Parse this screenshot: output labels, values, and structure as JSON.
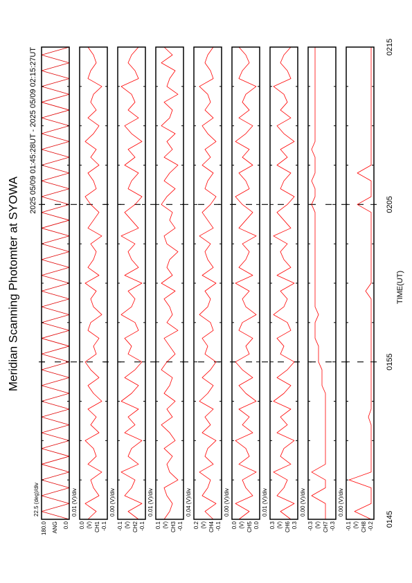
{
  "chart_data": {
    "type": "line",
    "title": "Meridian Scanning Photomter at SYOWA",
    "subtitle": "2025 05/09 01:45:28UT - 2025 05/09 02:15:27UT",
    "xlabel": "TIME(UT)",
    "xlim": [
      105,
      135
    ],
    "xticks": [
      {
        "value": 105,
        "label": "0145"
      },
      {
        "value": 115,
        "label": "0155"
      },
      {
        "value": 125,
        "label": "0205"
      },
      {
        "value": 135,
        "label": "0215"
      }
    ],
    "minor_xticks": [
      107.5,
      110,
      112.5,
      117.5,
      120,
      122.5,
      127.5,
      130,
      132.5
    ],
    "x": [
      105,
      105.5,
      106,
      106.5,
      107,
      107.5,
      108,
      108.5,
      109,
      109.5,
      110,
      110.5,
      111,
      111.5,
      112,
      112.5,
      113,
      113.5,
      114,
      114.5,
      115,
      115.5,
      116,
      116.5,
      117,
      117.5,
      118,
      118.5,
      119,
      119.5,
      120,
      120.5,
      121,
      121.5,
      122,
      122.5,
      123,
      123.5,
      124,
      124.5,
      125,
      125.5,
      126,
      126.5,
      127,
      127.5,
      128,
      128.5,
      129,
      129.5,
      130,
      130.5,
      131,
      131.5,
      132,
      132.5,
      133,
      133.5,
      134,
      134.5,
      135
    ],
    "panels": [
      {
        "scale": "22.5 (deg)/div",
        "labels": [
          "ANG"
        ],
        "ylim": [
          0,
          180
        ],
        "yticks": [
          {
            "value": 0,
            "label": "0.0"
          },
          {
            "value": 180,
            "label": "180.0"
          }
        ],
        "color": "#e00000",
        "values": [
          0,
          180,
          0,
          180,
          0,
          180,
          0,
          180,
          0,
          180,
          0,
          180,
          0,
          180,
          0,
          180,
          0,
          180,
          0,
          180,
          0,
          180,
          0,
          180,
          0,
          180,
          0,
          180,
          0,
          180,
          0,
          180,
          0,
          180,
          0,
          180,
          0,
          180,
          0,
          180,
          0,
          180,
          0,
          180,
          0,
          180,
          0,
          180,
          0,
          180,
          0,
          180,
          0,
          180,
          0,
          180,
          0,
          180,
          0,
          180,
          0
        ]
      },
      {
        "scale": "0.01 (V)/div",
        "labels": [
          "(V)",
          "CH1"
        ],
        "ylim": [
          -0.1,
          0.0
        ],
        "yticks": [
          -0.1,
          {
            "value": 0,
            "label": "0.0"
          }
        ],
        "color": "#ff0000",
        "values": [
          -0.03,
          -0.06,
          -0.02,
          -0.07,
          -0.05,
          -0.04,
          -0.08,
          -0.03,
          -0.06,
          -0.05,
          -0.02,
          -0.07,
          -0.04,
          -0.06,
          -0.03,
          -0.08,
          -0.05,
          -0.03,
          -0.07,
          -0.04,
          -0.02,
          -0.06,
          -0.05,
          -0.07,
          -0.03,
          -0.04,
          -0.08,
          -0.05,
          -0.04,
          -0.06,
          -0.02,
          -0.07,
          -0.03,
          -0.05,
          -0.06,
          -0.04,
          -0.08,
          -0.03,
          -0.05,
          -0.07,
          -0.04,
          -0.02,
          -0.06,
          -0.05,
          -0.03,
          -0.07,
          -0.04,
          -0.06,
          -0.02,
          -0.05,
          -0.07,
          -0.03,
          -0.06,
          -0.04,
          -0.05,
          -0.08,
          -0.03,
          -0.04,
          -0.06,
          -0.05,
          -0.03
        ]
      },
      {
        "scale": "0.00 (V)/div",
        "labels": [
          "(V)",
          "CH2"
        ],
        "ylim": [
          -0.14,
          -0.06
        ],
        "yticks": [
          {
            "value": -0.14,
            "label": "-0.1"
          },
          {
            "value": -0.06,
            "label": "-0.1"
          }
        ],
        "color": "#ff0000",
        "values": [
          -0.12,
          -0.09,
          -0.13,
          -0.08,
          -0.1,
          -0.11,
          -0.07,
          -0.12,
          -0.09,
          -0.1,
          -0.13,
          -0.08,
          -0.11,
          -0.09,
          -0.12,
          -0.07,
          -0.1,
          -0.12,
          -0.08,
          -0.11,
          -0.13,
          -0.09,
          -0.1,
          -0.08,
          -0.12,
          -0.11,
          -0.07,
          -0.1,
          -0.11,
          -0.09,
          -0.13,
          -0.08,
          -0.12,
          -0.1,
          -0.09,
          -0.11,
          -0.07,
          -0.12,
          -0.1,
          -0.08,
          -0.11,
          -0.13,
          -0.09,
          -0.1,
          -0.12,
          -0.08,
          -0.11,
          -0.09,
          -0.13,
          -0.1,
          -0.08,
          -0.12,
          -0.09,
          -0.11,
          -0.1,
          -0.07,
          -0.12,
          -0.11,
          -0.09,
          -0.1,
          -0.12
        ]
      },
      {
        "scale": "0.01 (V)/div",
        "labels": [
          "(V)",
          "CH3"
        ],
        "ylim": [
          -0.1,
          0.1
        ],
        "yticks": [
          -0.1,
          0.1
        ],
        "color": "#ff0000",
        "values": [
          0.04,
          0,
          -0.02,
          0.02,
          0.04,
          -0.06,
          0,
          0.02,
          -0.02,
          0.04,
          -0.04,
          0,
          0.06,
          -0.02,
          0.02,
          -0.04,
          0.04,
          0,
          -0.02,
          0.06,
          0.02,
          -0.04,
          0,
          0.04,
          -0.06,
          0.02,
          -0.02,
          0,
          0.04,
          -0.04,
          0.06,
          -0.02,
          0.02,
          0,
          -0.06,
          0.02,
          0.04,
          -0.04,
          0,
          -0.02,
          0.06,
          0.02,
          -0.04,
          0.04,
          0,
          -0.06,
          0.04,
          -0.02,
          0.02,
          -0.04,
          0.06,
          0,
          -0.02,
          0.04,
          -0.06,
          0.02,
          0,
          -0.04,
          0.06,
          -0.02,
          0.04
        ]
      },
      {
        "scale": "0.04 (V)/div",
        "labels": [
          "(V)",
          "CH4"
        ],
        "ylim": [
          -0.1,
          0.2
        ],
        "yticks": [
          -0.1,
          0.2
        ],
        "color": "#ff0000",
        "values": [
          -0.01,
          0.08,
          -0.04,
          0.11,
          0.05,
          0.02,
          0.14,
          -0.01,
          0.08,
          0.05,
          -0.04,
          0.11,
          0.02,
          0.08,
          -0.01,
          0.14,
          0.05,
          -0.01,
          0.11,
          0.02,
          -0.04,
          0.08,
          0.05,
          0.11,
          -0.01,
          0.02,
          0.14,
          0.05,
          0.02,
          0.08,
          -0.04,
          0.11,
          -0.01,
          0.05,
          0.08,
          0.02,
          0.14,
          -0.01,
          0.05,
          0.11,
          0.02,
          -0.04,
          0.08,
          0.05,
          -0.01,
          0.11,
          0.02,
          0.08,
          -0.04,
          0.05,
          0.11,
          -0.01,
          0.08,
          0.02,
          0.05,
          0.14,
          -0.01,
          0.02,
          0.08,
          0.05,
          -0.01
        ]
      },
      {
        "scale": "0.00 (V)/div",
        "labels": [
          "(V)",
          "CH5"
        ],
        "ylim": [
          -0.04,
          0.04
        ],
        "yticks": [
          {
            "value": -0.04,
            "label": "0.0"
          },
          {
            "value": 0.04,
            "label": "0.0"
          }
        ],
        "color": "#ff0000",
        "values": [
          0.02,
          -0.01,
          0.03,
          -0.02,
          0,
          0.01,
          -0.03,
          0.02,
          -0.01,
          0,
          0.03,
          -0.02,
          0.01,
          -0.01,
          0.02,
          -0.03,
          0,
          0.02,
          -0.02,
          0.01,
          0.03,
          -0.01,
          0,
          -0.02,
          0.02,
          0.01,
          -0.03,
          0,
          0.01,
          -0.01,
          0.03,
          -0.02,
          0.02,
          0,
          -0.01,
          0.01,
          -0.03,
          0.02,
          0,
          -0.02,
          0.01,
          0.03,
          -0.01,
          0,
          0.02,
          -0.02,
          0.01,
          -0.01,
          0.03,
          0,
          -0.02,
          0.02,
          -0.01,
          0.01,
          0,
          -0.03,
          0.02,
          0.01,
          -0.01,
          0,
          0.02
        ]
      },
      {
        "scale": "0.01 (V)/div",
        "labels": [
          "(V)",
          "CH6"
        ],
        "ylim": [
          0.26,
          0.34
        ],
        "yticks": [
          {
            "value": 0.26,
            "label": "0.3"
          },
          {
            "value": 0.34,
            "label": "0.3"
          }
        ],
        "color": "#ff0000",
        "values": [
          0.28,
          0.31,
          0.27,
          0.32,
          0.3,
          0.29,
          0.33,
          0.28,
          0.31,
          0.3,
          0.27,
          0.32,
          0.29,
          0.31,
          0.28,
          0.33,
          0.3,
          0.28,
          0.32,
          0.29,
          0.27,
          0.31,
          0.3,
          0.32,
          0.28,
          0.29,
          0.33,
          0.3,
          0.29,
          0.31,
          0.27,
          0.32,
          0.28,
          0.3,
          0.31,
          0.29,
          0.33,
          0.28,
          0.3,
          0.32,
          0.29,
          0.27,
          0.31,
          0.3,
          0.28,
          0.32,
          0.29,
          0.31,
          0.27,
          0.3,
          0.32,
          0.28,
          0.31,
          0.29,
          0.3,
          0.33,
          0.28,
          0.29,
          0.31,
          0.3,
          0.28
        ]
      },
      {
        "scale": "0.00 (V)/div",
        "labels": [
          "(V)",
          "CH7"
        ],
        "ylim": [
          -0.34,
          -0.26
        ],
        "yticks": [
          {
            "value": -0.34,
            "label": "-0.3"
          },
          {
            "value": -0.26,
            "label": "-0.3"
          }
        ],
        "color": "#ff0000",
        "values": [
          -0.31,
          -0.31,
          -0.31,
          -0.27,
          -0.31,
          -0.31,
          -0.27,
          -0.31,
          -0.31,
          -0.31,
          -0.31,
          -0.31,
          -0.31,
          -0.31,
          -0.31,
          -0.31,
          -0.31,
          -0.3,
          -0.3,
          -0.3,
          -0.29,
          -0.29,
          -0.29,
          -0.28,
          -0.28,
          -0.28,
          -0.29,
          -0.28,
          -0.28,
          -0.28,
          -0.28,
          -0.28,
          -0.28,
          -0.28,
          -0.28,
          -0.28,
          -0.28,
          -0.28,
          -0.28,
          -0.28,
          -0.27,
          -0.28,
          -0.28,
          -0.27,
          -0.28,
          -0.28,
          -0.28,
          -0.27,
          -0.28,
          -0.28,
          -0.28,
          -0.28,
          -0.28,
          -0.28,
          -0.28,
          -0.28,
          -0.28,
          -0.28,
          -0.28,
          -0.28,
          -0.28
        ]
      },
      {
        "scale": "0.00 (V)/div",
        "labels": [
          "(V)",
          "CH8"
        ],
        "ylim": [
          -0.2,
          -0.1
        ],
        "yticks": [
          -0.2,
          -0.1
        ],
        "color": "#ff0000",
        "values": [
          -0.19,
          -0.13,
          -0.19,
          -0.19,
          -0.19,
          -0.11,
          -0.19,
          -0.19,
          -0.19,
          -0.19,
          -0.19,
          -0.19,
          -0.19,
          -0.18,
          -0.19,
          -0.19,
          -0.19,
          -0.19,
          -0.19,
          -0.19,
          -0.19,
          -0.19,
          -0.19,
          -0.19,
          -0.19,
          -0.19,
          -0.19,
          -0.19,
          -0.19,
          -0.17,
          -0.19,
          -0.19,
          -0.19,
          -0.19,
          -0.19,
          -0.19,
          -0.19,
          -0.19,
          -0.19,
          -0.19,
          -0.14,
          -0.19,
          -0.19,
          -0.19,
          -0.14,
          -0.19,
          -0.19,
          -0.19,
          -0.19,
          -0.19,
          -0.19,
          -0.19,
          -0.19,
          -0.19,
          -0.19,
          -0.19,
          -0.19,
          -0.19,
          -0.19,
          -0.19,
          -0.19
        ]
      }
    ]
  }
}
